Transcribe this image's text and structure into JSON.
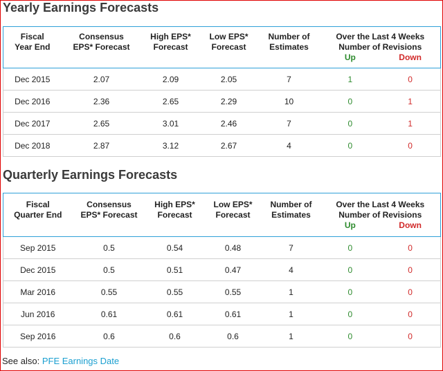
{
  "yearly": {
    "title": "Yearly Earnings Forecasts",
    "headers": {
      "period_l1": "Fiscal",
      "period_l2": "Year End",
      "consensus_l1": "Consensus",
      "consensus_l2": "EPS* Forecast",
      "high_l1": "High EPS*",
      "high_l2": "Forecast",
      "low_l1": "Low EPS*",
      "low_l2": "Forecast",
      "estimates_l1": "Number of",
      "estimates_l2": "Estimates",
      "revisions_l1": "Over the Last 4 Weeks",
      "revisions_l2": "Number of Revisions",
      "up": "Up",
      "down": "Down"
    },
    "rows": [
      {
        "period": "Dec 2015",
        "consensus": "2.07",
        "high": "2.09",
        "low": "2.05",
        "estimates": "7",
        "up": "1",
        "down": "0"
      },
      {
        "period": "Dec 2016",
        "consensus": "2.36",
        "high": "2.65",
        "low": "2.29",
        "estimates": "10",
        "up": "0",
        "down": "1"
      },
      {
        "period": "Dec 2017",
        "consensus": "2.65",
        "high": "3.01",
        "low": "2.46",
        "estimates": "7",
        "up": "0",
        "down": "1"
      },
      {
        "period": "Dec 2018",
        "consensus": "2.87",
        "high": "3.12",
        "low": "2.67",
        "estimates": "4",
        "up": "0",
        "down": "0"
      }
    ]
  },
  "quarterly": {
    "title": "Quarterly Earnings Forecasts",
    "headers": {
      "period_l1": "Fiscal",
      "period_l2": "Quarter End",
      "consensus_l1": "Consensus",
      "consensus_l2": "EPS* Forecast",
      "high_l1": "High EPS*",
      "high_l2": "Forecast",
      "low_l1": "Low EPS*",
      "low_l2": "Forecast",
      "estimates_l1": "Number of",
      "estimates_l2": "Estimates",
      "revisions_l1": "Over the Last 4 Weeks",
      "revisions_l2": "Number of Revisions",
      "up": "Up",
      "down": "Down"
    },
    "rows": [
      {
        "period": "Sep 2015",
        "consensus": "0.5",
        "high": "0.54",
        "low": "0.48",
        "estimates": "7",
        "up": "0",
        "down": "0"
      },
      {
        "period": "Dec 2015",
        "consensus": "0.5",
        "high": "0.51",
        "low": "0.47",
        "estimates": "4",
        "up": "0",
        "down": "0"
      },
      {
        "period": "Mar 2016",
        "consensus": "0.55",
        "high": "0.55",
        "low": "0.55",
        "estimates": "1",
        "up": "0",
        "down": "0"
      },
      {
        "period": "Jun 2016",
        "consensus": "0.61",
        "high": "0.61",
        "low": "0.61",
        "estimates": "1",
        "up": "0",
        "down": "0"
      },
      {
        "period": "Sep 2016",
        "consensus": "0.6",
        "high": "0.6",
        "low": "0.6",
        "estimates": "1",
        "up": "0",
        "down": "0"
      }
    ]
  },
  "see_also": {
    "label": "See also:",
    "link_text": "PFE Earnings Date"
  },
  "colors": {
    "up": "#2e8b2e",
    "down": "#d12a2a",
    "header_border": "#2ea0d8",
    "link": "#1a9fd0",
    "frame": "#e00000"
  }
}
